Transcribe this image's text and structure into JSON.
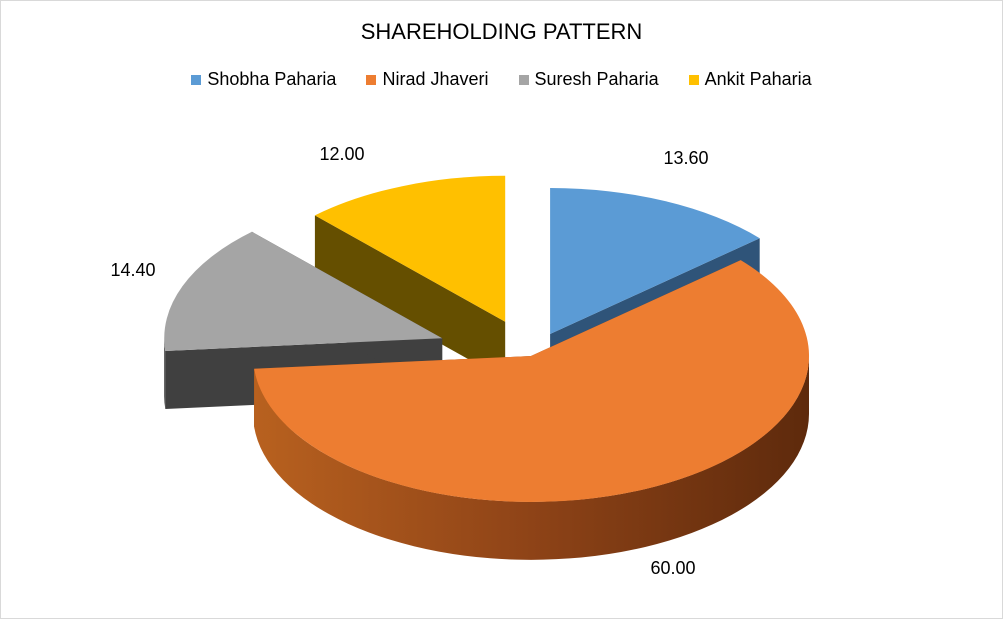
{
  "chart_data": {
    "type": "pie",
    "title": "SHAREHOLDING PATTERN",
    "categories": [
      "Shobha Paharia",
      "Nirad Jhaveri",
      "Suresh Paharia",
      "Ankit Paharia"
    ],
    "values": [
      13.6,
      60.0,
      14.4,
      12.0
    ],
    "value_labels": [
      "13.60",
      "60.00",
      "14.40",
      "12.00"
    ],
    "colors": [
      "#5B9BD5",
      "#ED7D31",
      "#A5A5A5",
      "#FFC000"
    ],
    "side_colors": [
      "#2F5479",
      "#8A4216",
      "#404040",
      "#654F00"
    ],
    "legend_position": "top",
    "style": "3d-exploded"
  }
}
